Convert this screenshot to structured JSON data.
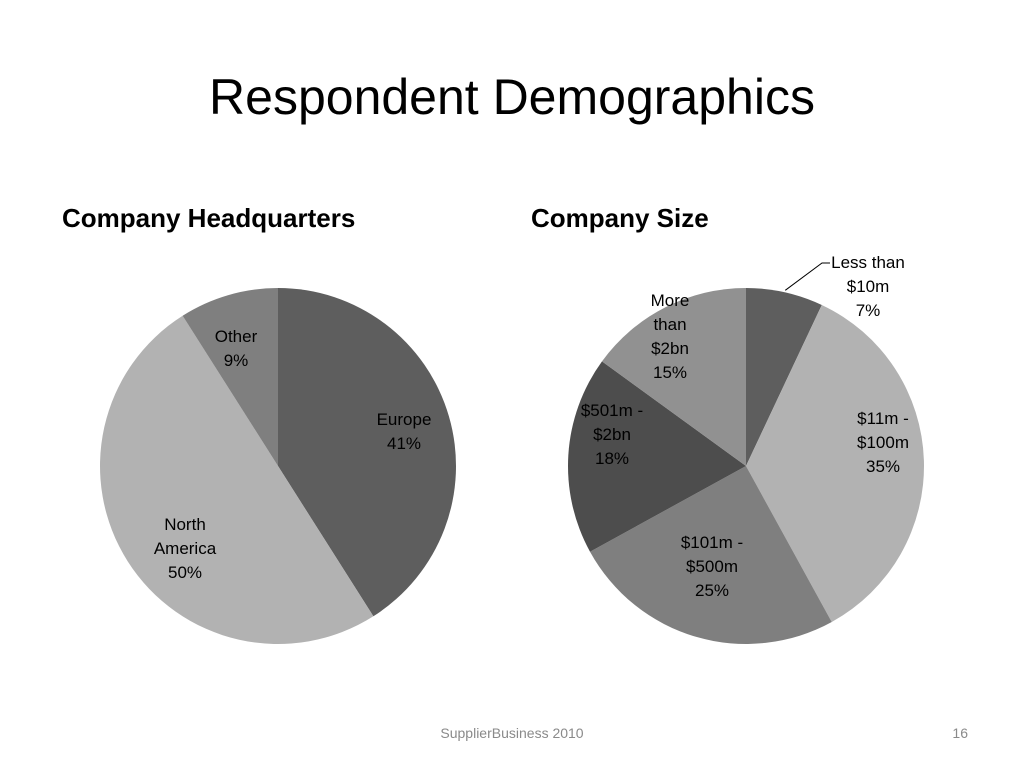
{
  "slide": {
    "title": "Respondent Demographics",
    "footer_source": "SupplierBusiness 2010",
    "page_number": "16"
  },
  "chart_data": [
    {
      "type": "pie",
      "title": "Company Headquarters",
      "slices": [
        {
          "label": [
            "Europe",
            "41%"
          ],
          "value": 41,
          "color": "#5e5e5e"
        },
        {
          "label": [
            "North",
            "America",
            "50%"
          ],
          "value": 50,
          "color": "#b2b2b2"
        },
        {
          "label": [
            "Other",
            "9%"
          ],
          "value": 9,
          "color": "#7f7f7f"
        }
      ]
    },
    {
      "type": "pie",
      "title": "Company Size",
      "slices": [
        {
          "label": [
            "Less than",
            "$10m",
            "7%"
          ],
          "value": 7,
          "color": "#5e5e5e"
        },
        {
          "label": [
            "$11m -",
            "$100m",
            "35%"
          ],
          "value": 35,
          "color": "#b2b2b2"
        },
        {
          "label": [
            "$101m -",
            "$500m",
            "25%"
          ],
          "value": 25,
          "color": "#7f7f7f"
        },
        {
          "label": [
            "$501m -",
            "$2bn",
            "18%"
          ],
          "value": 18,
          "color": "#4d4d4d"
        },
        {
          "label": [
            "More",
            "than",
            "$2bn",
            "15%"
          ],
          "value": 15,
          "color": "#919191"
        }
      ]
    }
  ]
}
